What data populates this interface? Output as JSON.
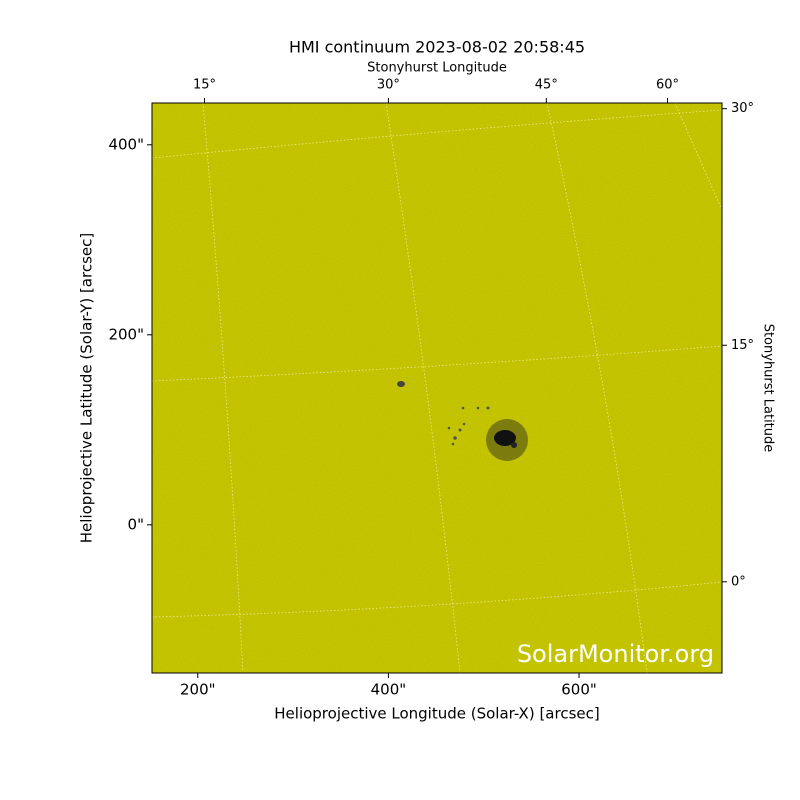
{
  "chart_data": {
    "type": "image",
    "title": "HMI continuum 2023-08-02 20:58:45",
    "xlabel": "Helioprojective Longitude (Solar-X) [arcsec]",
    "ylabel": "Helioprojective Latitude (Solar-Y) [arcsec]",
    "x2label": "Stonyhurst Longitude",
    "y2label": "Stonyhurst Latitude",
    "watermark": "SolarMonitor.org",
    "xlim": [
      152,
      750
    ],
    "ylim": [
      -156,
      444
    ],
    "xticks": [
      {
        "value": 200,
        "label": "200\""
      },
      {
        "value": 400,
        "label": "400\""
      },
      {
        "value": 600,
        "label": "600\""
      }
    ],
    "yticks": [
      {
        "value": 0,
        "label": "0\""
      },
      {
        "value": 200,
        "label": "200\""
      },
      {
        "value": 400,
        "label": "400\""
      }
    ],
    "x2ticks": [
      {
        "value": 15,
        "label": "15°"
      },
      {
        "value": 30,
        "label": "30°"
      },
      {
        "value": 45,
        "label": "45°"
      },
      {
        "value": 60,
        "label": "60°"
      }
    ],
    "y2ticks": [
      {
        "value": 30,
        "label": "30°"
      },
      {
        "value": 15,
        "label": "15°"
      },
      {
        "value": 0,
        "label": "0°"
      }
    ],
    "color": "#c9c900"
  }
}
